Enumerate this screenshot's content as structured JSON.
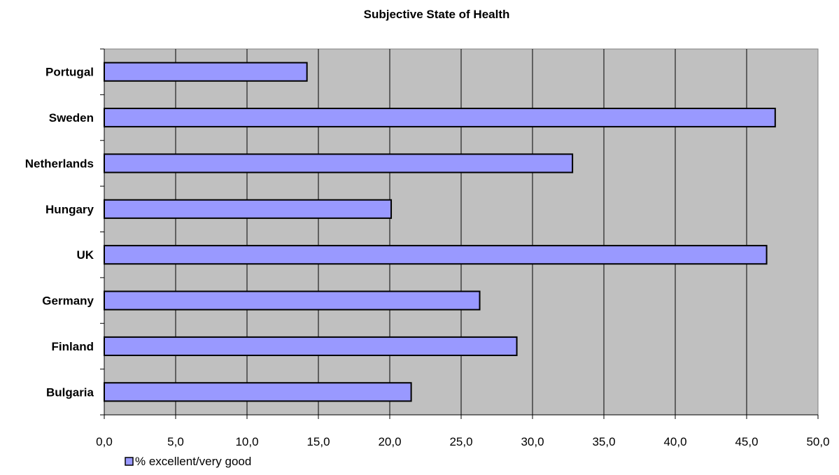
{
  "chart_data": {
    "type": "bar",
    "orientation": "horizontal",
    "title": "Subjective State of Health",
    "xlabel": "",
    "ylabel": "",
    "categories": [
      "Bulgaria",
      "Finland",
      "Germany",
      "UK",
      "Hungary",
      "Netherlands",
      "Sweden",
      "Portugal"
    ],
    "series": [
      {
        "name": "% excellent/very good",
        "values": [
          21.5,
          28.9,
          26.3,
          46.4,
          20.1,
          32.8,
          47.0,
          14.2
        ]
      }
    ],
    "xlim": [
      0,
      50
    ],
    "xticks": [
      "0,0",
      "5,0",
      "10,0",
      "15,0",
      "20,0",
      "25,0",
      "30,0",
      "35,0",
      "40,0",
      "45,0",
      "50,0"
    ],
    "grid": true,
    "legend": "bottom-left",
    "colors": {
      "bar_fill": "#9999ff",
      "bar_stroke": "#000000",
      "plot_background": "#c0c0c0",
      "gridline": "#000000"
    }
  }
}
